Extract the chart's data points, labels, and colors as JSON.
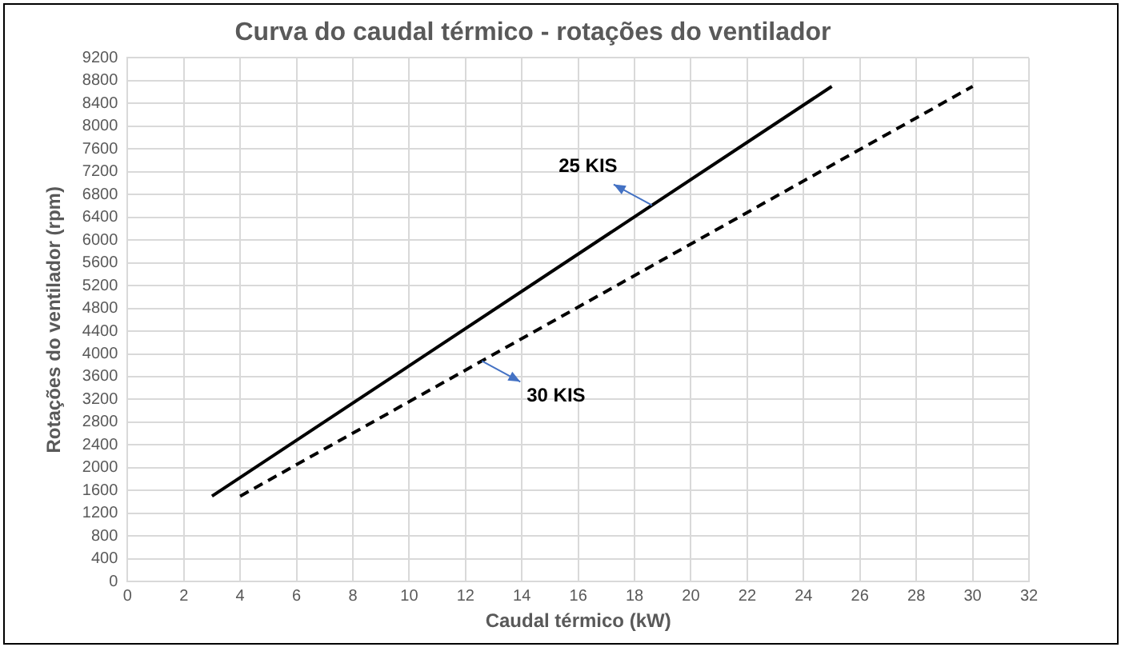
{
  "chart_data": {
    "type": "line",
    "title": "Curva do caudal térmico - rotações do ventilador",
    "xlabel": "Caudal térmico (kW)",
    "ylabel": "Rotações do ventilador (rpm)",
    "xlim": [
      0,
      32
    ],
    "xticks": [
      0,
      2,
      4,
      6,
      8,
      10,
      12,
      14,
      16,
      18,
      20,
      22,
      24,
      26,
      28,
      30,
      32
    ],
    "ylim": [
      0,
      9200
    ],
    "yticks": [
      0,
      400,
      800,
      1200,
      1600,
      2000,
      2400,
      2800,
      3200,
      3600,
      4000,
      4400,
      4800,
      5200,
      5600,
      6000,
      6400,
      6800,
      7200,
      7600,
      8000,
      8400,
      8800,
      9200
    ],
    "grid": true,
    "legend": false,
    "marker": "none",
    "series": [
      {
        "name": "25 KIS",
        "color": "#000000",
        "line_style": "solid",
        "x": [
          3,
          25
        ],
        "values": [
          1500,
          8700
        ]
      },
      {
        "name": "30 KIS",
        "color": "#000000",
        "line_style": "dashed",
        "x": [
          4,
          30
        ],
        "values": [
          1500,
          8700
        ]
      }
    ]
  }
}
